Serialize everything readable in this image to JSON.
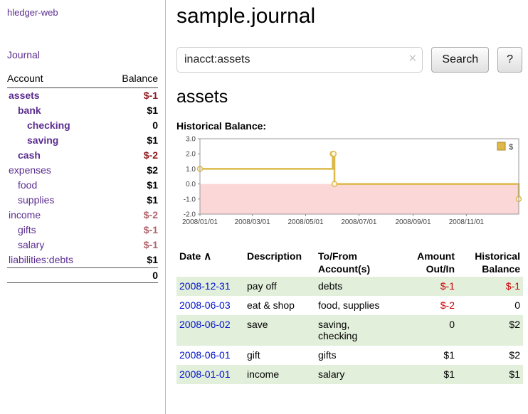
{
  "app": {
    "title": "hledger-web",
    "nav": {
      "journal": "Journal"
    }
  },
  "sidebar": {
    "headers": {
      "account": "Account",
      "balance": "Balance"
    },
    "accounts": [
      {
        "name": "assets",
        "balance": "$-1",
        "indent": 1,
        "bold": true,
        "name_color": "darkred",
        "balance_color": "darkred"
      },
      {
        "name": "bank",
        "balance": "$1",
        "indent": 2,
        "bold": true,
        "name_color": "purple",
        "balance_color": "black"
      },
      {
        "name": "checking",
        "balance": "0",
        "indent": 3,
        "bold": true,
        "name_color": "purple",
        "balance_color": "black"
      },
      {
        "name": "saving",
        "balance": "$1",
        "indent": 3,
        "bold": true,
        "name_color": "purple",
        "balance_color": "black"
      },
      {
        "name": "cash",
        "balance": "$-2",
        "indent": 2,
        "bold": true,
        "name_color": "darkred",
        "balance_color": "darkred"
      },
      {
        "name": "expenses",
        "balance": "$2",
        "indent": 1,
        "bold": false,
        "name_color": "purple",
        "balance_color": "black"
      },
      {
        "name": "food",
        "balance": "$1",
        "indent": 2,
        "bold": false,
        "name_color": "purple",
        "balance_color": "black"
      },
      {
        "name": "supplies",
        "balance": "$1",
        "indent": 2,
        "bold": false,
        "name_color": "purple",
        "balance_color": "black"
      },
      {
        "name": "income",
        "balance": "$-2",
        "indent": 1,
        "bold": false,
        "name_color": "purple",
        "balance_color": "rose"
      },
      {
        "name": "gifts",
        "balance": "$-1",
        "indent": 2,
        "bold": false,
        "name_color": "purple",
        "balance_color": "rose"
      },
      {
        "name": "salary",
        "balance": "$-1",
        "indent": 2,
        "bold": false,
        "name_color": "purple",
        "balance_color": "rose"
      },
      {
        "name": "liabilities:debts",
        "balance": "$1",
        "indent": 1,
        "bold": false,
        "name_color": "purple",
        "balance_color": "black"
      }
    ],
    "total": "0"
  },
  "main": {
    "title": "sample.journal",
    "search": {
      "value": "inacct:assets",
      "clear_icon": "×",
      "button_label": "Search",
      "help_label": "?"
    },
    "account_heading": "assets",
    "chart_title": "Historical Balance:"
  },
  "chart_data": {
    "type": "line",
    "step": true,
    "title": "Historical Balance:",
    "series": [
      {
        "name": "$",
        "points": [
          [
            "2008-01-01",
            1
          ],
          [
            "2008-06-01",
            2
          ],
          [
            "2008-06-02",
            2
          ],
          [
            "2008-06-03",
            0
          ],
          [
            "2008-12-31",
            -1
          ]
        ]
      }
    ],
    "ylim": [
      -2.0,
      3.0
    ],
    "yticks": [
      3.0,
      2.0,
      1.0,
      0.0,
      -1.0,
      -2.0
    ],
    "xticks": [
      "2008/01/01",
      "2008/03/01",
      "2008/05/01",
      "2008/07/01",
      "2008/09/01",
      "2008/11/01"
    ],
    "xrange": [
      "2008-01-01",
      "2008-12-31"
    ],
    "legend": {
      "label": "$",
      "position": "top-right"
    },
    "grid": false,
    "colors": {
      "line": "#ddb94a",
      "legend_border": "#a8852c",
      "negative_region": "#fcd7d7"
    }
  },
  "register": {
    "headers": {
      "date": "Date",
      "sort_icon": "∧",
      "description": "Description",
      "accounts": "To/From Account(s)",
      "amount": "Amount Out/In",
      "balance": "Historical Balance"
    },
    "rows": [
      {
        "date": "2008-12-31",
        "description": "pay off",
        "accounts": "debts",
        "amount": "$-1",
        "balance": "$-1",
        "amount_negative": true,
        "balance_negative": true
      },
      {
        "date": "2008-06-03",
        "description": "eat & shop",
        "accounts": "food, supplies",
        "amount": "$-2",
        "balance": "0",
        "amount_negative": true,
        "balance_negative": false
      },
      {
        "date": "2008-06-02",
        "description": "save",
        "accounts": "saving, checking",
        "amount": "0",
        "balance": "$2",
        "amount_negative": false,
        "balance_negative": false
      },
      {
        "date": "2008-06-01",
        "description": "gift",
        "accounts": "gifts",
        "amount": "$1",
        "balance": "$2",
        "amount_negative": false,
        "balance_negative": false
      },
      {
        "date": "2008-01-01",
        "description": "income",
        "accounts": "salary",
        "amount": "$1",
        "balance": "$1",
        "amount_negative": false,
        "balance_negative": false
      }
    ]
  }
}
